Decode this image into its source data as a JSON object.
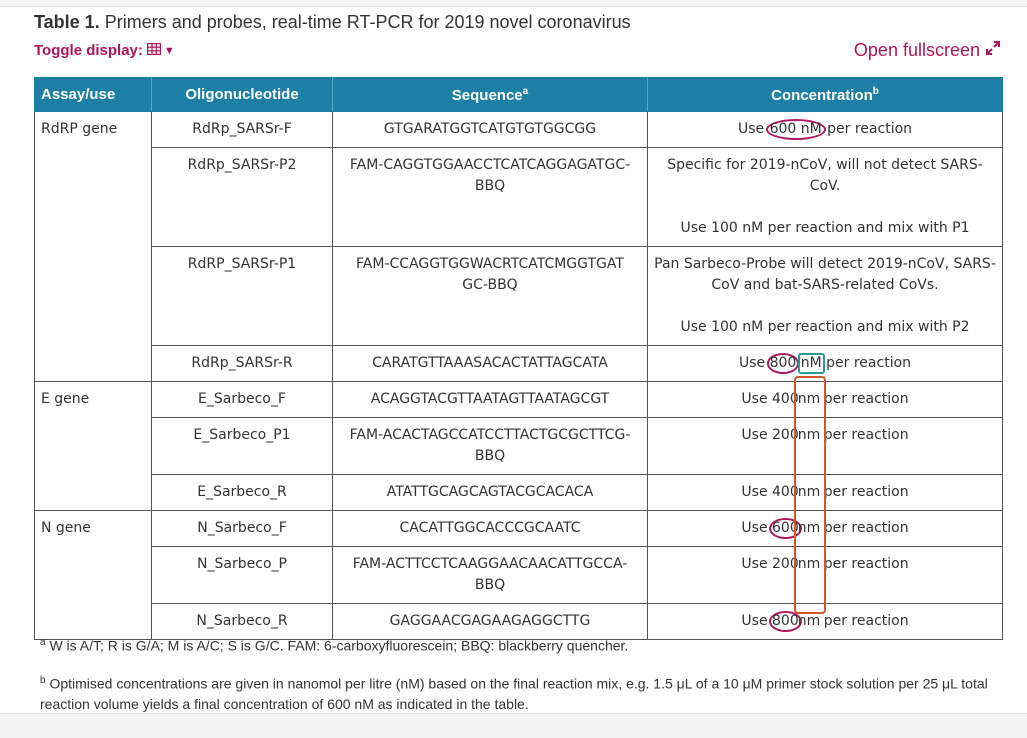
{
  "caption": {
    "label": "Table 1.",
    "title": " Primers and probes, real-time RT-PCR for 2019 novel coronavirus"
  },
  "toggle": {
    "label": "Toggle display:",
    "icon": "table-grid-icon"
  },
  "fullscreen": {
    "label": "Open fullscreen",
    "icon": "expand-arrows-icon"
  },
  "columns": [
    "Assay/use",
    "Oligonucleotide",
    "Sequence",
    "Concentration"
  ],
  "column_superscripts": {
    "sequence": "a",
    "concentration": "b"
  },
  "groups": [
    {
      "assay": "RdRP gene"
    },
    {
      "assay": "E gene"
    },
    {
      "assay": "N gene"
    }
  ],
  "rows": [
    {
      "oligo": "RdRp_SARSr-F",
      "sequence": "GTGARATGGTCATGTGTGGCGG",
      "conc": "Use 600 nM per reaction"
    },
    {
      "oligo": "RdRp_SARSr-P2",
      "sequence": "FAM-CAGGTGGAACCTCATCAGGAGATGC-BBQ",
      "conc_p1": "Specific for 2019-nCoV, will not detect SARS-CoV.",
      "conc_p2": "Use 100 nM per reaction and mix with P1"
    },
    {
      "oligo": "RdRP_SARSr-P1",
      "sequence": "FAM-CCAGGTGGWACRTCATCMGGTGATGC-BBQ",
      "conc_p1": "Pan Sarbeco-Probe will detect 2019-nCoV, SARS-CoV and bat-SARS-related CoVs.",
      "conc_p2": "Use 100 nM per reaction and mix with P2"
    },
    {
      "oligo": "RdRp_SARSr-R",
      "sequence": "CARATGTTAAASACACTATTAGCATA",
      "conc": "Use 800 nM per reaction"
    },
    {
      "oligo": "E_Sarbeco_F",
      "sequence": "ACAGGTACGTTAATAGTTAATAGCGT",
      "conc": "Use 400 nm per reaction"
    },
    {
      "oligo": "E_Sarbeco_P1",
      "sequence": "FAM-ACACTAGCCATCCTTACTGCGCTTCG-BBQ",
      "conc": "Use 200 nm per reaction"
    },
    {
      "oligo": "E_Sarbeco_R",
      "sequence": "ATATTGCAGCAGTACGCACACA",
      "conc": "Use 400 nm per reaction"
    },
    {
      "oligo": "N_Sarbeco_F",
      "sequence": "CACATTGGCACCCGCAATC",
      "conc": "Use 600 nm per reaction"
    },
    {
      "oligo": "N_Sarbeco_P",
      "sequence": "FAM-ACTTCCTCAAGGAACAACATTGCCA-BBQ",
      "conc": "Use 200 nm per reaction"
    },
    {
      "oligo": "N_Sarbeco_R",
      "sequence": "GAGGAACGAGAAGAGGCTTG",
      "conc": "Use 800 nm per reaction"
    }
  ],
  "conc_parts": {
    "use": "Use",
    "per_reaction": "per reaction",
    "r0": {
      "num": "600 nM"
    },
    "r3": {
      "num": "800",
      "unit": "nM"
    },
    "r4": {
      "num": "400",
      "unit": "nm"
    },
    "r5": {
      "num": "200",
      "unit": "nm"
    },
    "r6": {
      "num": "400",
      "unit": "nm"
    },
    "r7": {
      "num": "600",
      "unit": "nm"
    },
    "r8": {
      "num": "200",
      "unit": "nm"
    },
    "r9": {
      "num": "800",
      "unit": "nm"
    }
  },
  "annotation_colors": {
    "circle": "#b0185e",
    "teal_box": "#2a9c90",
    "orange_box": "#d4572a",
    "header": "#1e7fa6",
    "link": "#b0145a"
  },
  "footnotes": {
    "a": {
      "mark": "a",
      "text": " W is A/T; R is G/A; M is A/C; S is G/C. FAM: 6-carboxyfluorescein; BBQ: blackberry quencher."
    },
    "b": {
      "mark": "b",
      "text": " Optimised concentrations are given in nanomol per litre (nM) based on the final reaction mix, e.g. 1.5 μL of a 10 μM primer stock solution per 25 μL total reaction volume yields a final concentration of 600 nM as indicated in the table."
    }
  }
}
